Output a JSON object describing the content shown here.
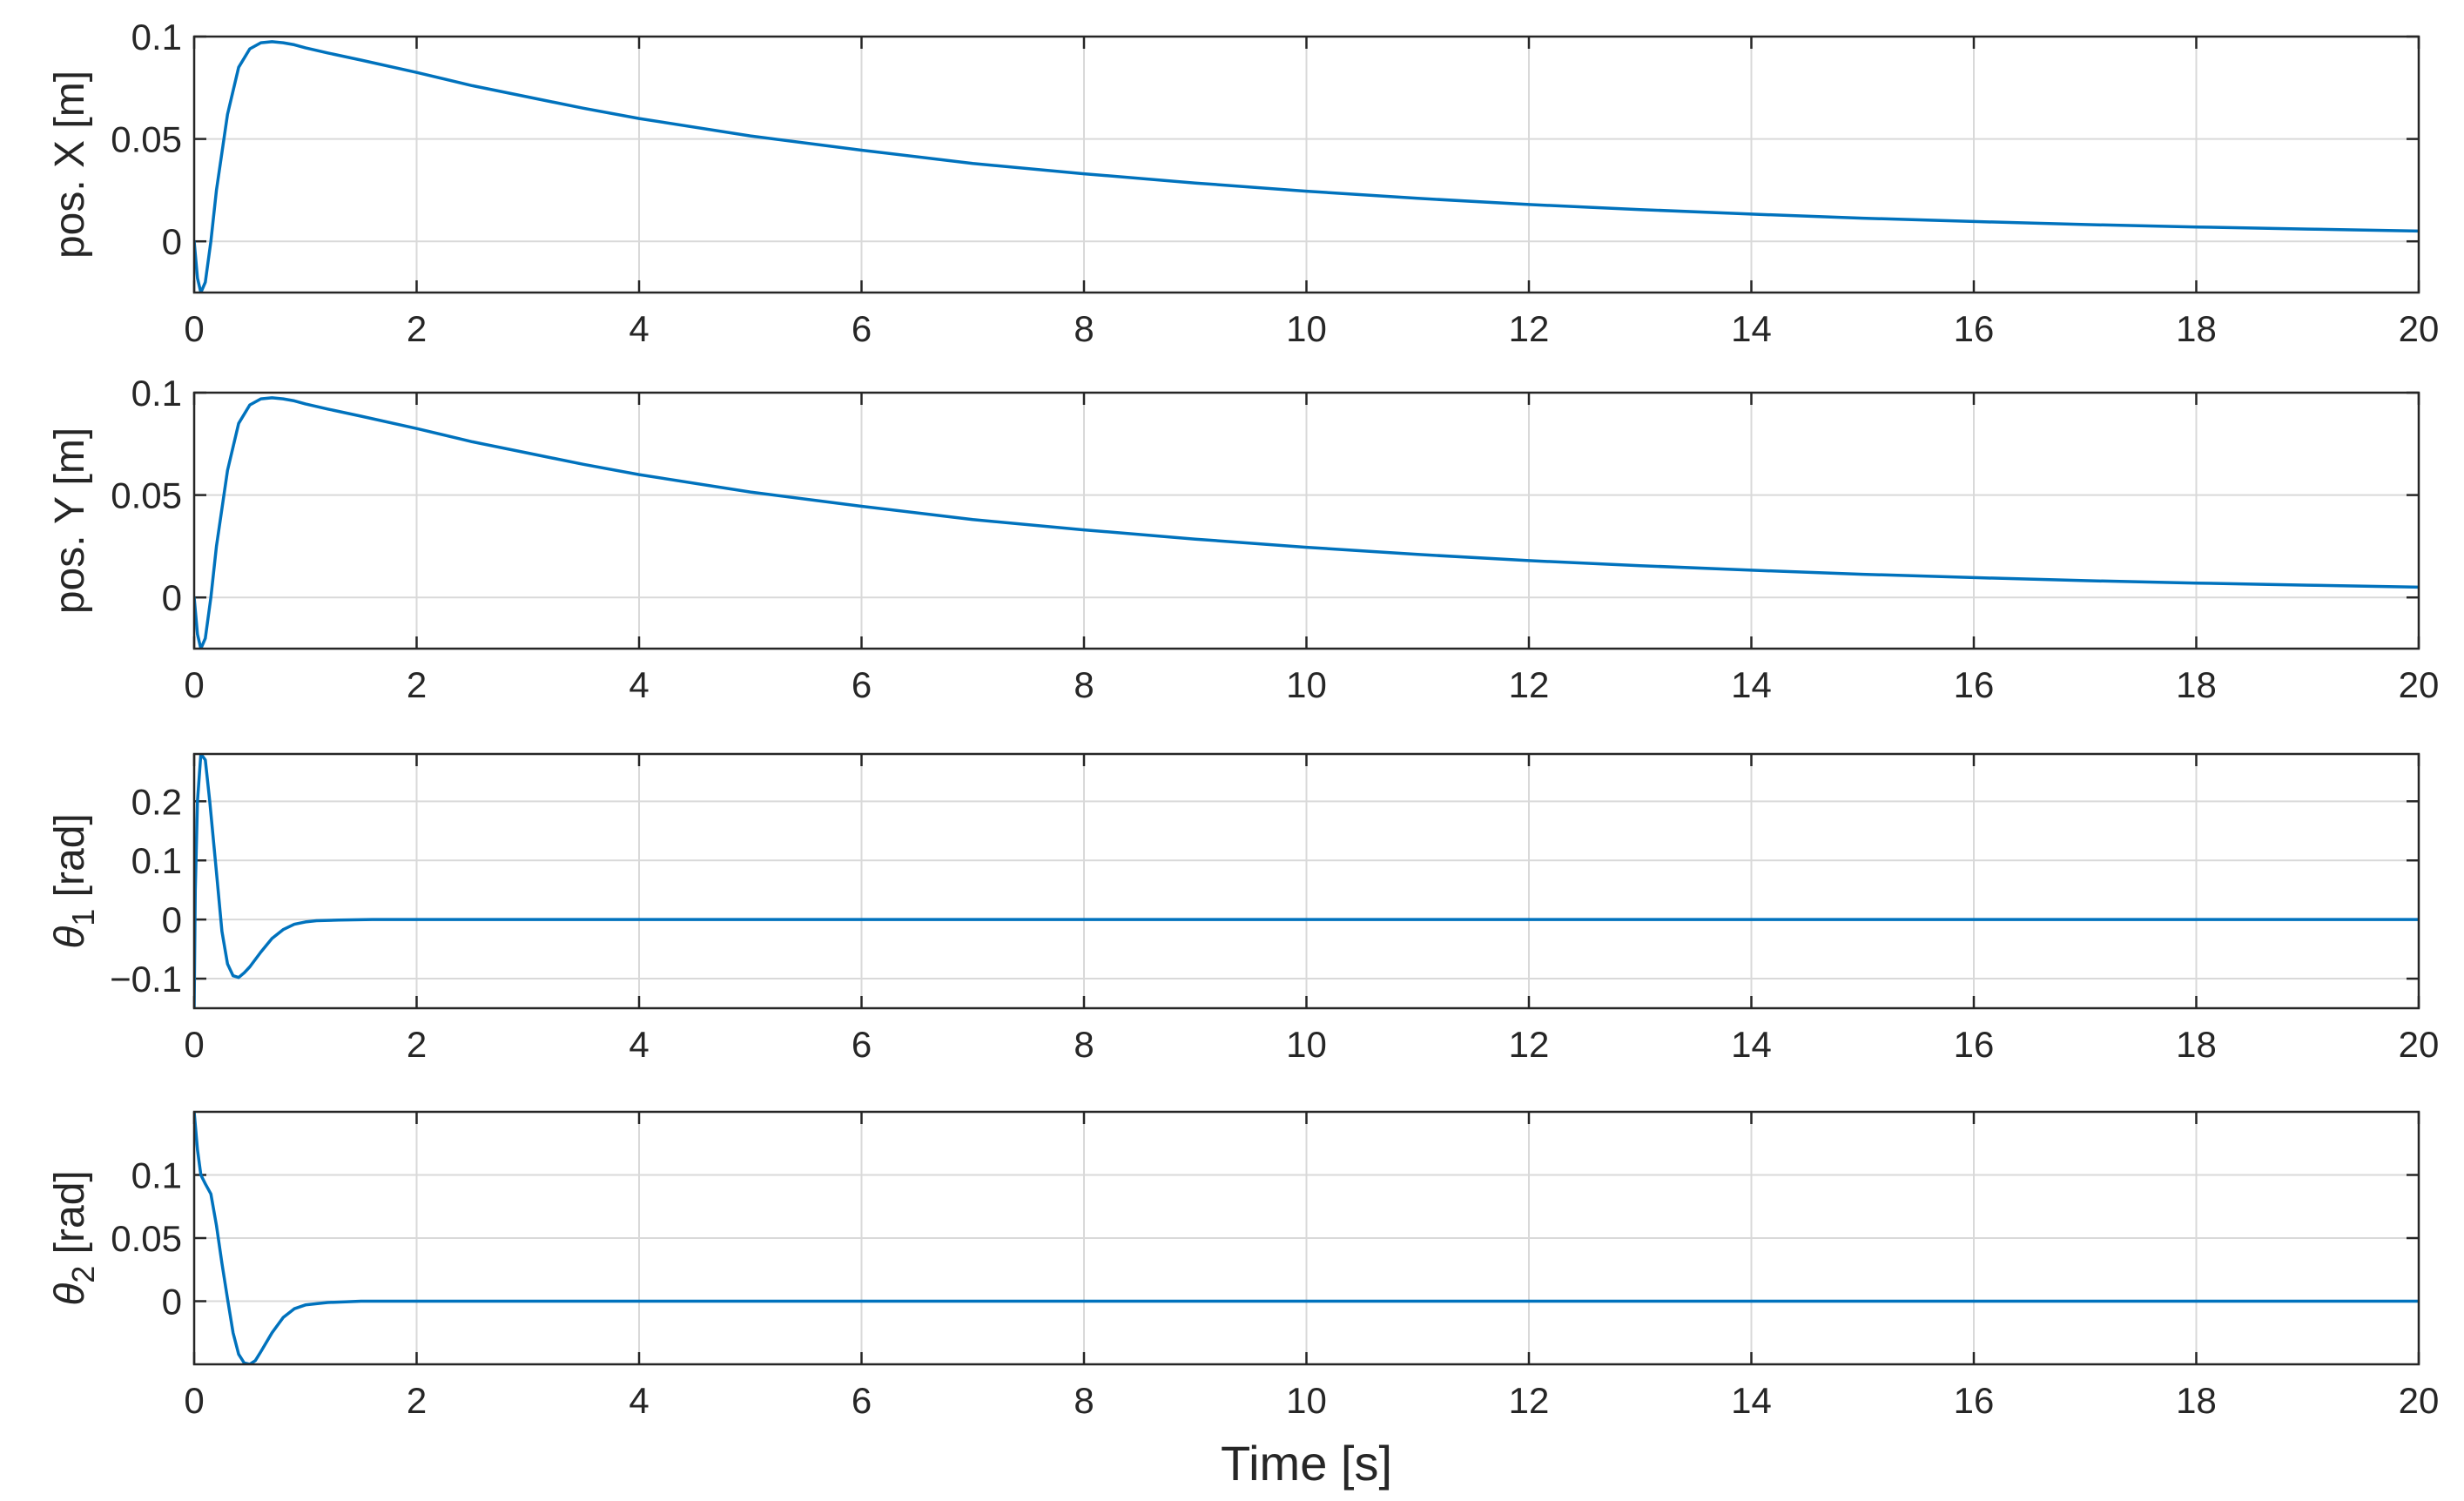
{
  "figure": {
    "xlabel": "Time [s]",
    "colors": {
      "line": "#0072bd",
      "axis": "#262626",
      "grid": "#d9d9d9",
      "background": "#ffffff"
    }
  },
  "chart_data": [
    {
      "type": "line",
      "ylabel": "pos. X [m]",
      "ylabel_main": "pos. X [m]",
      "ylabel_sub": "",
      "xlim": [
        0,
        20
      ],
      "ylim": [
        -0.025,
        0.1
      ],
      "xticks": [
        "0",
        "2",
        "4",
        "6",
        "8",
        "10",
        "12",
        "14",
        "16",
        "18",
        "20"
      ],
      "yticks": [
        {
          "value": 0,
          "label": "0"
        },
        {
          "value": 0.05,
          "label": "0.05"
        },
        {
          "value": 0.1,
          "label": "0.1"
        }
      ],
      "grid": true,
      "series": [
        {
          "color": "#0072bd",
          "x": [
            0,
            0.03,
            0.06,
            0.1,
            0.15,
            0.2,
            0.3,
            0.4,
            0.5,
            0.6,
            0.7,
            0.8,
            0.9,
            1.0,
            1.2,
            1.5,
            2,
            2.5,
            3,
            3.5,
            4,
            5,
            6,
            7,
            8,
            9,
            10,
            11,
            12,
            13,
            14,
            15,
            16,
            17,
            18,
            19,
            20
          ],
          "y": [
            0,
            -0.018,
            -0.025,
            -0.02,
            0,
            0.025,
            0.062,
            0.085,
            0.094,
            0.097,
            0.0975,
            0.097,
            0.096,
            0.0945,
            0.092,
            0.0885,
            0.0825,
            0.076,
            0.0705,
            0.065,
            0.06,
            0.0515,
            0.0445,
            0.038,
            0.033,
            0.0285,
            0.0245,
            0.021,
            0.018,
            0.0155,
            0.0133,
            0.0113,
            0.0097,
            0.0082,
            0.007,
            0.006,
            0.005
          ]
        }
      ]
    },
    {
      "type": "line",
      "ylabel": "pos. Y [m]",
      "ylabel_main": "pos. Y [m]",
      "ylabel_sub": "",
      "xlim": [
        0,
        20
      ],
      "ylim": [
        -0.025,
        0.1
      ],
      "xticks": [
        "0",
        "2",
        "4",
        "6",
        "8",
        "10",
        "12",
        "14",
        "16",
        "18",
        "20"
      ],
      "yticks": [
        {
          "value": 0,
          "label": "0"
        },
        {
          "value": 0.05,
          "label": "0.05"
        },
        {
          "value": 0.1,
          "label": "0.1"
        }
      ],
      "grid": true,
      "series": [
        {
          "color": "#0072bd",
          "x": [
            0,
            0.03,
            0.06,
            0.1,
            0.15,
            0.2,
            0.3,
            0.4,
            0.5,
            0.6,
            0.7,
            0.8,
            0.9,
            1.0,
            1.2,
            1.5,
            2,
            2.5,
            3,
            3.5,
            4,
            5,
            6,
            7,
            8,
            9,
            10,
            11,
            12,
            13,
            14,
            15,
            16,
            17,
            18,
            19,
            20
          ],
          "y": [
            0,
            -0.018,
            -0.025,
            -0.02,
            0,
            0.025,
            0.062,
            0.085,
            0.094,
            0.097,
            0.0975,
            0.097,
            0.096,
            0.0945,
            0.092,
            0.0885,
            0.0825,
            0.076,
            0.0705,
            0.065,
            0.06,
            0.0515,
            0.0445,
            0.038,
            0.033,
            0.0285,
            0.0245,
            0.021,
            0.018,
            0.0155,
            0.0133,
            0.0113,
            0.0097,
            0.0082,
            0.007,
            0.006,
            0.005
          ]
        }
      ]
    },
    {
      "type": "line",
      "ylabel": "θ1 [rad]",
      "ylabel_main": "θ",
      "ylabel_sub": "1",
      "ylabel_unit": " [rad]",
      "xlim": [
        0,
        20
      ],
      "ylim": [
        -0.15,
        0.28
      ],
      "xticks": [
        "0",
        "2",
        "4",
        "6",
        "8",
        "10",
        "12",
        "14",
        "16",
        "18",
        "20"
      ],
      "yticks": [
        {
          "value": -0.1,
          "label": "−0.1"
        },
        {
          "value": 0,
          "label": "0"
        },
        {
          "value": 0.1,
          "label": "0.1"
        },
        {
          "value": 0.2,
          "label": "0.2"
        }
      ],
      "grid": true,
      "series": [
        {
          "color": "#0072bd",
          "x": [
            0,
            0.01,
            0.03,
            0.06,
            0.1,
            0.14,
            0.2,
            0.25,
            0.3,
            0.35,
            0.4,
            0.45,
            0.5,
            0.6,
            0.7,
            0.8,
            0.9,
            1.0,
            1.1,
            1.3,
            1.6,
            2,
            4,
            6,
            8,
            10,
            12,
            14,
            16,
            18,
            20
          ],
          "y": [
            -0.15,
            0.05,
            0.2,
            0.28,
            0.27,
            0.2,
            0.08,
            -0.02,
            -0.075,
            -0.095,
            -0.098,
            -0.09,
            -0.08,
            -0.055,
            -0.032,
            -0.017,
            -0.008,
            -0.004,
            -0.002,
            -0.001,
            0,
            0,
            0,
            0,
            0,
            0,
            0,
            0,
            0,
            0,
            0
          ]
        }
      ]
    },
    {
      "type": "line",
      "ylabel": "θ2 [rad]",
      "ylabel_main": "θ",
      "ylabel_sub": "2",
      "ylabel_unit": " [rad]",
      "xlim": [
        0,
        20
      ],
      "ylim": [
        -0.05,
        0.15
      ],
      "xticks": [
        "0",
        "2",
        "4",
        "6",
        "8",
        "10",
        "12",
        "14",
        "16",
        "18",
        "20"
      ],
      "yticks": [
        {
          "value": 0,
          "label": "0"
        },
        {
          "value": 0.05,
          "label": "0.05"
        },
        {
          "value": 0.1,
          "label": "0.1"
        }
      ],
      "grid": true,
      "series": [
        {
          "color": "#0072bd",
          "x": [
            0,
            0.03,
            0.06,
            0.1,
            0.15,
            0.2,
            0.25,
            0.3,
            0.35,
            0.4,
            0.45,
            0.5,
            0.55,
            0.6,
            0.7,
            0.8,
            0.9,
            1.0,
            1.2,
            1.5,
            2,
            4,
            6,
            8,
            10,
            12,
            14,
            16,
            18,
            20
          ],
          "y": [
            0.15,
            0.12,
            0.1,
            0.093,
            0.085,
            0.06,
            0.03,
            0.002,
            -0.025,
            -0.042,
            -0.049,
            -0.05,
            -0.047,
            -0.04,
            -0.025,
            -0.013,
            -0.006,
            -0.003,
            -0.001,
            0,
            0,
            0,
            0,
            0,
            0,
            0,
            0,
            0,
            0,
            0
          ]
        }
      ]
    }
  ]
}
